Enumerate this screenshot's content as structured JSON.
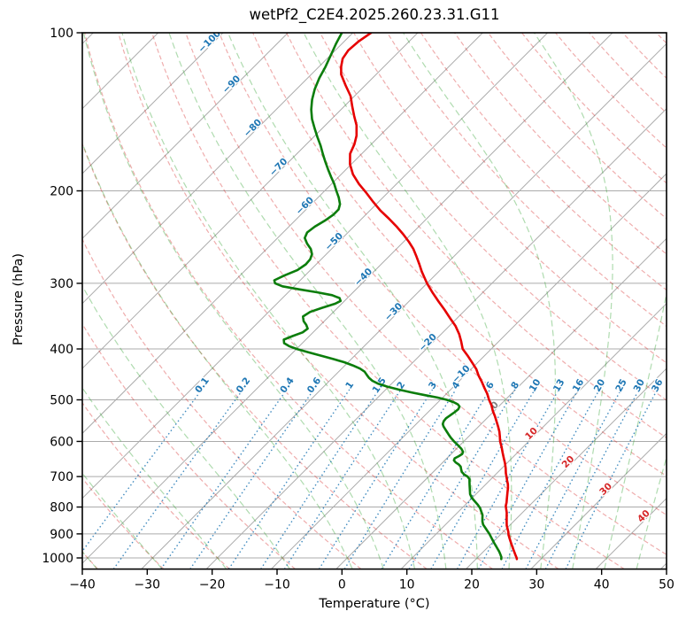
{
  "chart_data": {
    "type": "skewt-log-p",
    "title": "wetPf2_C2E4.2025.260.23.31.G11",
    "xlabel": "Temperature (°C)",
    "ylabel": "Pressure (hPa)",
    "x_axis": {
      "min": -40,
      "max": 50,
      "ticks": [
        -40,
        -30,
        -20,
        -10,
        0,
        10,
        20,
        30,
        40,
        50
      ]
    },
    "y_axis": {
      "scale": "log",
      "min": 100,
      "max": 1050,
      "ticks": [
        100,
        200,
        300,
        400,
        500,
        600,
        700,
        800,
        900,
        1000
      ]
    },
    "grid": true,
    "colors": {
      "temperature": "#e60000",
      "dewpoint": "#0b7d0b",
      "dry_adiabat": "#d62728",
      "moist_adiabat": "#2ca02c",
      "mixing_ratio": "#1f77b4",
      "isotherm": "#ababab",
      "pressure_grid": "#ababab",
      "isotherm_label_neg": "#1f77b4",
      "isotherm_label_zero": "#808080",
      "isotherm_label_pos": "#d62728",
      "frame": "#000000"
    },
    "isotherms": {
      "start": -120,
      "end": 50,
      "step": 10
    },
    "dry_adiabats": {
      "start": -40,
      "end": 250,
      "step": 10
    },
    "moist_adiabats": {
      "t0_list": [
        -40,
        -30,
        -20,
        -10,
        0,
        5,
        10,
        15,
        20,
        25,
        30,
        35,
        40,
        45,
        50
      ]
    },
    "mixing_ratios": {
      "values": [
        0.1,
        0.2,
        0.4,
        0.6,
        1,
        1.5,
        2,
        3,
        4,
        6,
        8,
        10,
        13,
        16,
        20,
        25,
        30,
        36
      ],
      "top_pressure": 478,
      "label_pressure": 478
    },
    "isotherm_labels": [
      {
        "t": -100,
        "p": 106,
        "color": "#1f77b4"
      },
      {
        "t": -90,
        "p": 128,
        "color": "#1f77b4"
      },
      {
        "t": -80,
        "p": 155,
        "color": "#1f77b4"
      },
      {
        "t": -70,
        "p": 184,
        "color": "#1f77b4"
      },
      {
        "t": -60,
        "p": 218,
        "color": "#1f77b4"
      },
      {
        "t": -50,
        "p": 255,
        "color": "#1f77b4"
      },
      {
        "t": -40,
        "p": 298,
        "color": "#1f77b4"
      },
      {
        "t": -30,
        "p": 347,
        "color": "#1f77b4"
      },
      {
        "t": -20,
        "p": 397,
        "color": "#1f77b4"
      },
      {
        "t": -10,
        "p": 456,
        "color": "#1f77b4"
      },
      {
        "t": 0,
        "p": 523,
        "color": "#808080"
      },
      {
        "t": 10,
        "p": 592,
        "color": "#d62728"
      },
      {
        "t": 20,
        "p": 670,
        "color": "#d62728"
      },
      {
        "t": 30,
        "p": 755,
        "color": "#d62728"
      },
      {
        "t": 40,
        "p": 850,
        "color": "#d62728"
      }
    ],
    "sounding": {
      "temperature_profile": [
        [
          100,
          -77.2
        ],
        [
          104,
          -77.8
        ],
        [
          108,
          -78.0
        ],
        [
          112,
          -77.6
        ],
        [
          116,
          -76.6
        ],
        [
          120,
          -75.4
        ],
        [
          126,
          -73.0
        ],
        [
          132,
          -70.6
        ],
        [
          138,
          -68.8
        ],
        [
          144,
          -67.0
        ],
        [
          150,
          -65.2
        ],
        [
          157,
          -63.6
        ],
        [
          163,
          -62.6
        ],
        [
          170,
          -61.8
        ],
        [
          178,
          -60.2
        ],
        [
          186,
          -58.2
        ],
        [
          194,
          -55.8
        ],
        [
          202,
          -53.2
        ],
        [
          210,
          -50.8
        ],
        [
          218,
          -48.4
        ],
        [
          226,
          -45.8
        ],
        [
          234,
          -43.4
        ],
        [
          242,
          -41.2
        ],
        [
          250,
          -39.2
        ],
        [
          258,
          -37.4
        ],
        [
          267,
          -35.7
        ],
        [
          276,
          -34.1
        ],
        [
          285,
          -32.6
        ],
        [
          293,
          -31.2
        ],
        [
          300,
          -30.0
        ],
        [
          312,
          -27.8
        ],
        [
          325,
          -25.4
        ],
        [
          337,
          -23.2
        ],
        [
          350,
          -21.0
        ],
        [
          362,
          -19.0
        ],
        [
          375,
          -17.2
        ],
        [
          387,
          -15.8
        ],
        [
          400,
          -14.4
        ],
        [
          412,
          -12.6
        ],
        [
          425,
          -10.8
        ],
        [
          437,
          -9.2
        ],
        [
          450,
          -7.8
        ],
        [
          462,
          -6.4
        ],
        [
          475,
          -5.0
        ],
        [
          487,
          -3.7
        ],
        [
          500,
          -2.5
        ],
        [
          512,
          -1.3
        ],
        [
          525,
          -0.2
        ],
        [
          537,
          0.9
        ],
        [
          550,
          2.0
        ],
        [
          562,
          3.0
        ],
        [
          575,
          4.0
        ],
        [
          587,
          4.8
        ],
        [
          600,
          5.6
        ],
        [
          615,
          6.7
        ],
        [
          630,
          7.7
        ],
        [
          645,
          8.7
        ],
        [
          660,
          9.7
        ],
        [
          675,
          10.6
        ],
        [
          690,
          11.4
        ],
        [
          700,
          12.0
        ],
        [
          712,
          12.7
        ],
        [
          724,
          13.4
        ],
        [
          736,
          14.0
        ],
        [
          748,
          14.5
        ],
        [
          760,
          15.0
        ],
        [
          772,
          15.5
        ],
        [
          784,
          16.0
        ],
        [
          796,
          16.4
        ],
        [
          808,
          17.0
        ],
        [
          820,
          17.6
        ],
        [
          832,
          18.1
        ],
        [
          844,
          18.6
        ],
        [
          856,
          19.1
        ],
        [
          868,
          19.6
        ],
        [
          880,
          20.2
        ],
        [
          892,
          20.8
        ],
        [
          904,
          21.3
        ],
        [
          916,
          21.9
        ],
        [
          928,
          22.5
        ],
        [
          940,
          23.1
        ],
        [
          952,
          23.7
        ],
        [
          964,
          24.3
        ],
        [
          976,
          24.9
        ],
        [
          988,
          25.5
        ],
        [
          1000,
          26.1
        ],
        [
          1005,
          26.3
        ]
      ],
      "dewpoint_profile": [
        [
          100,
          -81.7
        ],
        [
          105,
          -80.9
        ],
        [
          110,
          -80.0
        ],
        [
          116,
          -79.0
        ],
        [
          122,
          -78.2
        ],
        [
          128,
          -77.2
        ],
        [
          134,
          -76.0
        ],
        [
          140,
          -74.6
        ],
        [
          146,
          -73.0
        ],
        [
          152,
          -71.2
        ],
        [
          158,
          -69.4
        ],
        [
          164,
          -67.6
        ],
        [
          170,
          -66.0
        ],
        [
          176,
          -64.4
        ],
        [
          182,
          -62.8
        ],
        [
          188,
          -61.2
        ],
        [
          194,
          -59.6
        ],
        [
          200,
          -58.2
        ],
        [
          206,
          -56.8
        ],
        [
          212,
          -55.6
        ],
        [
          217,
          -55.0
        ],
        [
          222,
          -55.0
        ],
        [
          228,
          -55.4
        ],
        [
          234,
          -56.0
        ],
        [
          240,
          -56.3
        ],
        [
          246,
          -55.8
        ],
        [
          252,
          -54.6
        ],
        [
          258,
          -53.2
        ],
        [
          264,
          -52.2
        ],
        [
          270,
          -51.7
        ],
        [
          276,
          -51.6
        ],
        [
          283,
          -52.0
        ],
        [
          290,
          -53.2
        ],
        [
          296,
          -54.0
        ],
        [
          300,
          -53.4
        ],
        [
          304,
          -51.8
        ],
        [
          308,
          -48.8
        ],
        [
          312,
          -45.6
        ],
        [
          316,
          -42.8
        ],
        [
          320,
          -41.2
        ],
        [
          324,
          -40.6
        ],
        [
          328,
          -41.0
        ],
        [
          334,
          -42.4
        ],
        [
          340,
          -43.6
        ],
        [
          347,
          -44.0
        ],
        [
          354,
          -43.2
        ],
        [
          360,
          -42.2
        ],
        [
          366,
          -41.4
        ],
        [
          372,
          -41.6
        ],
        [
          378,
          -42.6
        ],
        [
          384,
          -43.4
        ],
        [
          390,
          -42.8
        ],
        [
          395,
          -41.6
        ],
        [
          400,
          -40.0
        ],
        [
          406,
          -37.6
        ],
        [
          412,
          -35.2
        ],
        [
          418,
          -32.8
        ],
        [
          424,
          -30.6
        ],
        [
          430,
          -28.8
        ],
        [
          436,
          -27.2
        ],
        [
          442,
          -26.0
        ],
        [
          448,
          -25.2
        ],
        [
          454,
          -24.4
        ],
        [
          460,
          -23.4
        ],
        [
          466,
          -22.0
        ],
        [
          472,
          -20.2
        ],
        [
          478,
          -18.0
        ],
        [
          484,
          -15.6
        ],
        [
          490,
          -13.0
        ],
        [
          495,
          -10.8
        ],
        [
          500,
          -9.0
        ],
        [
          505,
          -7.6
        ],
        [
          510,
          -6.6
        ],
        [
          515,
          -6.0
        ],
        [
          521,
          -5.8
        ],
        [
          528,
          -5.9
        ],
        [
          535,
          -6.1
        ],
        [
          542,
          -6.3
        ],
        [
          549,
          -6.2
        ],
        [
          556,
          -5.9
        ],
        [
          562,
          -5.4
        ],
        [
          568,
          -4.8
        ],
        [
          575,
          -4.1
        ],
        [
          582,
          -3.4
        ],
        [
          590,
          -2.6
        ],
        [
          600,
          -1.5
        ],
        [
          610,
          -0.3
        ],
        [
          620,
          0.8
        ],
        [
          628,
          1.5
        ],
        [
          634,
          1.7
        ],
        [
          640,
          1.5
        ],
        [
          646,
          1.2
        ],
        [
          652,
          1.4
        ],
        [
          658,
          2.0
        ],
        [
          664,
          2.8
        ],
        [
          670,
          3.4
        ],
        [
          678,
          3.9
        ],
        [
          686,
          4.4
        ],
        [
          694,
          5.2
        ],
        [
          700,
          6.0
        ],
        [
          708,
          6.7
        ],
        [
          716,
          7.1
        ],
        [
          726,
          7.6
        ],
        [
          736,
          8.1
        ],
        [
          746,
          8.6
        ],
        [
          756,
          9.1
        ],
        [
          768,
          9.9
        ],
        [
          780,
          10.9
        ],
        [
          792,
          11.9
        ],
        [
          804,
          12.8
        ],
        [
          816,
          13.5
        ],
        [
          828,
          14.2
        ],
        [
          840,
          14.7
        ],
        [
          852,
          15.2
        ],
        [
          864,
          15.8
        ],
        [
          876,
          16.6
        ],
        [
          888,
          17.4
        ],
        [
          900,
          18.2
        ],
        [
          912,
          18.9
        ],
        [
          924,
          19.6
        ],
        [
          936,
          20.3
        ],
        [
          948,
          21.0
        ],
        [
          960,
          21.7
        ],
        [
          972,
          22.4
        ],
        [
          984,
          23.0
        ],
        [
          996,
          23.6
        ],
        [
          1005,
          23.9
        ]
      ]
    }
  }
}
